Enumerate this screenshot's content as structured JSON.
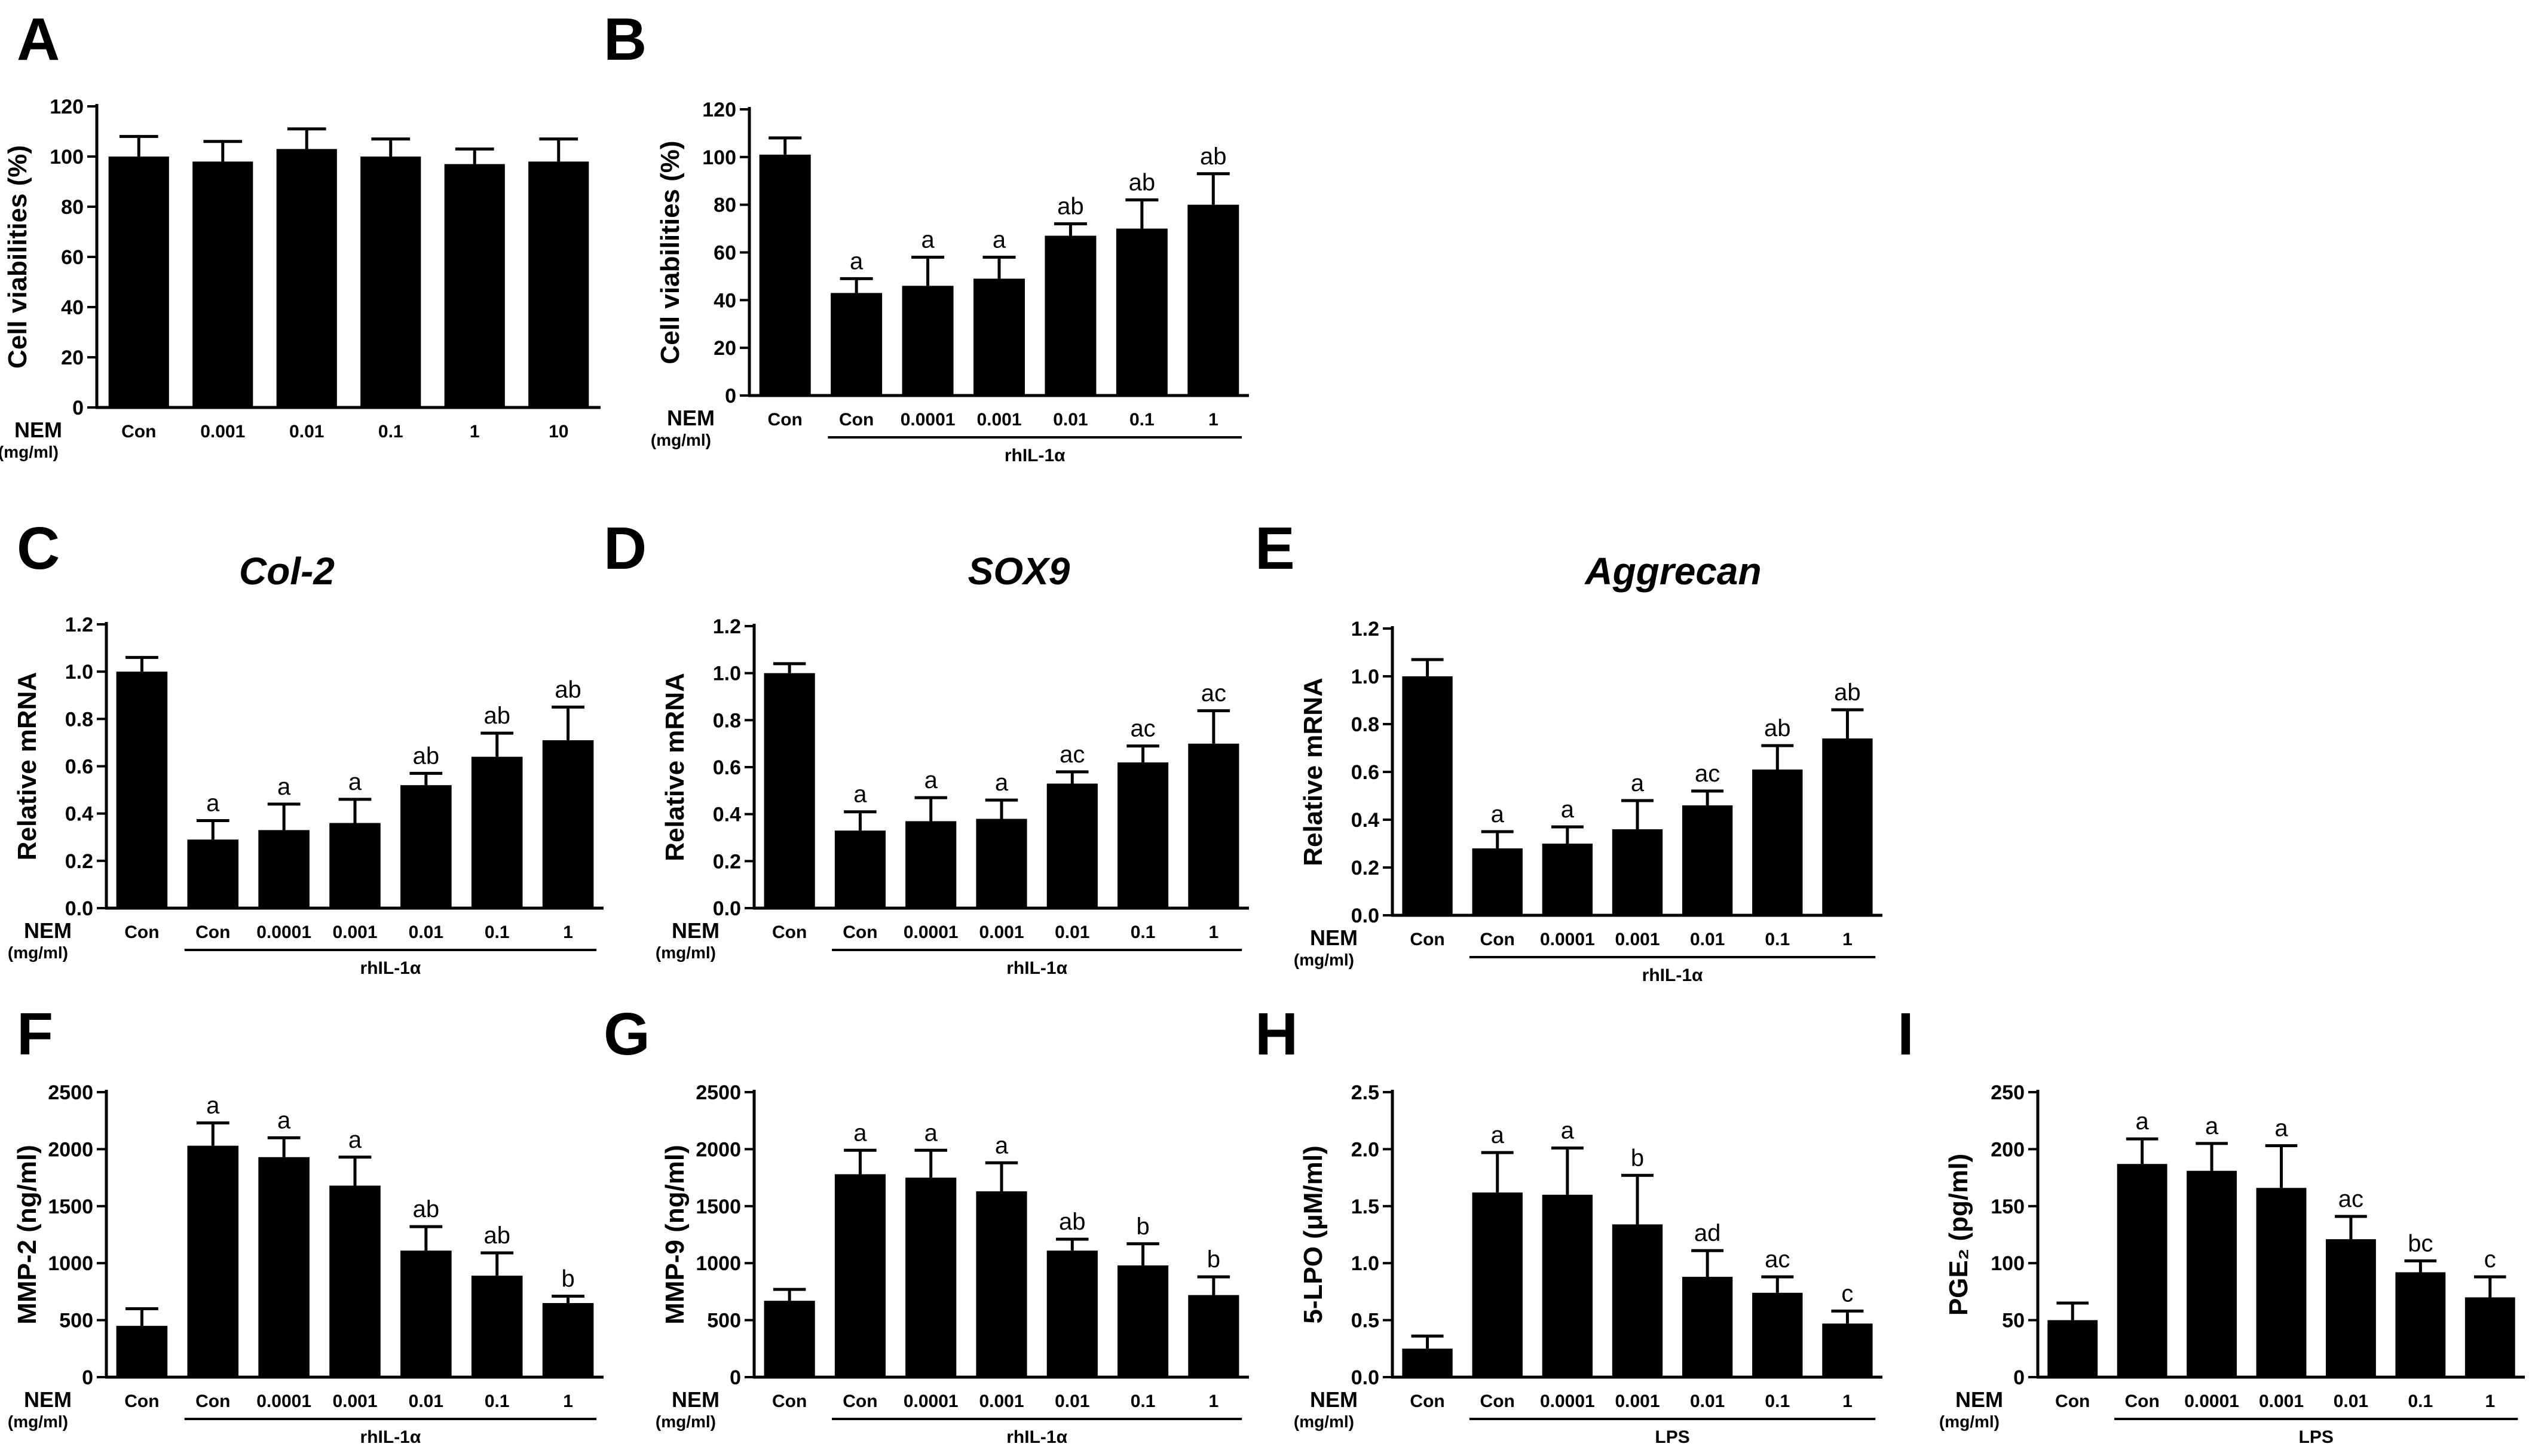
{
  "colors": {
    "bar": "#000000",
    "axis": "#000000",
    "background": "#ffffff"
  },
  "x_axis_label": {
    "main": "NEM",
    "unit": "(mg/ml)"
  },
  "chart_data": [
    {
      "id": "A",
      "panel_label": "A",
      "type": "bar",
      "title": "",
      "ylabel": "Cell viabilities (%)",
      "ylim": [
        0,
        120
      ],
      "yticks": [
        "0",
        "20",
        "40",
        "60",
        "80",
        "100",
        "120"
      ],
      "categories": [
        "Con",
        "0.001",
        "0.01",
        "0.1",
        "1",
        "10"
      ],
      "values": [
        100,
        98,
        103,
        100,
        97,
        98
      ],
      "errors": [
        8,
        8,
        8,
        7,
        6,
        9
      ],
      "significance": [
        "",
        "",
        "",
        "",
        "",
        ""
      ],
      "treatment_group": null
    },
    {
      "id": "B",
      "panel_label": "B",
      "type": "bar",
      "title": "",
      "ylabel": "Cell viabilities (%)",
      "ylim": [
        0,
        120
      ],
      "yticks": [
        "0",
        "20",
        "40",
        "60",
        "80",
        "100",
        "120"
      ],
      "categories": [
        "Con",
        "Con",
        "0.0001",
        "0.001",
        "0.01",
        "0.1",
        "1"
      ],
      "values": [
        101,
        43,
        46,
        49,
        67,
        70,
        80
      ],
      "errors": [
        7,
        6,
        12,
        9,
        5,
        12,
        13
      ],
      "significance": [
        "",
        "a",
        "a",
        "a",
        "ab",
        "ab",
        "ab"
      ],
      "treatment_group": {
        "label": "rhIL-1α",
        "start": 1,
        "end": 6
      }
    },
    {
      "id": "C",
      "panel_label": "C",
      "type": "bar",
      "title": "Col-2",
      "ylabel": "Relative mRNA",
      "ylim": [
        0,
        1.2
      ],
      "yticks": [
        "0.0",
        "0.2",
        "0.4",
        "0.6",
        "0.8",
        "1.0",
        "1.2"
      ],
      "categories": [
        "Con",
        "Con",
        "0.0001",
        "0.001",
        "0.01",
        "0.1",
        "1"
      ],
      "values": [
        1.0,
        0.29,
        0.33,
        0.36,
        0.52,
        0.64,
        0.71
      ],
      "errors": [
        0.06,
        0.08,
        0.11,
        0.1,
        0.05,
        0.1,
        0.14
      ],
      "significance": [
        "",
        "a",
        "a",
        "a",
        "ab",
        "ab",
        "ab"
      ],
      "treatment_group": {
        "label": "rhIL-1α",
        "start": 1,
        "end": 6
      }
    },
    {
      "id": "D",
      "panel_label": "D",
      "type": "bar",
      "title": "SOX9",
      "ylabel": "Relative mRNA",
      "ylim": [
        0,
        1.2
      ],
      "yticks": [
        "0.0",
        "0.2",
        "0.4",
        "0.6",
        "0.8",
        "1.0",
        "1.2"
      ],
      "categories": [
        "Con",
        "Con",
        "0.0001",
        "0.001",
        "0.01",
        "0.1",
        "1"
      ],
      "values": [
        1.0,
        0.33,
        0.37,
        0.38,
        0.53,
        0.62,
        0.7
      ],
      "errors": [
        0.04,
        0.08,
        0.1,
        0.08,
        0.05,
        0.07,
        0.14
      ],
      "significance": [
        "",
        "a",
        "a",
        "a",
        "ac",
        "ac",
        "ac"
      ],
      "treatment_group": {
        "label": "rhIL-1α",
        "start": 1,
        "end": 6
      }
    },
    {
      "id": "E",
      "panel_label": "E",
      "type": "bar",
      "title": "Aggrecan",
      "ylabel": "Relative mRNA",
      "ylim": [
        0,
        1.2
      ],
      "yticks": [
        "0.0",
        "0.2",
        "0.4",
        "0.6",
        "0.8",
        "1.0",
        "1.2"
      ],
      "categories": [
        "Con",
        "Con",
        "0.0001",
        "0.001",
        "0.01",
        "0.1",
        "1"
      ],
      "values": [
        1.0,
        0.28,
        0.3,
        0.36,
        0.46,
        0.61,
        0.74
      ],
      "errors": [
        0.07,
        0.07,
        0.07,
        0.12,
        0.06,
        0.1,
        0.12
      ],
      "significance": [
        "",
        "a",
        "a",
        "a",
        "ac",
        "ab",
        "ab"
      ],
      "treatment_group": {
        "label": "rhIL-1α",
        "start": 1,
        "end": 6
      }
    },
    {
      "id": "F",
      "panel_label": "F",
      "type": "bar",
      "title": "",
      "ylabel": "MMP-2 (ng/ml)",
      "ylim": [
        0,
        2500
      ],
      "yticks": [
        "0",
        "500",
        "1000",
        "1500",
        "2000",
        "2500"
      ],
      "categories": [
        "Con",
        "Con",
        "0.0001",
        "0.001",
        "0.01",
        "0.1",
        "1"
      ],
      "values": [
        450,
        2030,
        1930,
        1680,
        1110,
        890,
        650
      ],
      "errors": [
        150,
        200,
        170,
        250,
        210,
        200,
        60
      ],
      "significance": [
        "",
        "a",
        "a",
        "a",
        "ab",
        "ab",
        "b"
      ],
      "treatment_group": {
        "label": "rhIL-1α",
        "start": 1,
        "end": 6
      }
    },
    {
      "id": "G",
      "panel_label": "G",
      "type": "bar",
      "title": "",
      "ylabel": "MMP-9 (ng/ml)",
      "ylim": [
        0,
        2500
      ],
      "yticks": [
        "0",
        "500",
        "1000",
        "1500",
        "2000",
        "2500"
      ],
      "categories": [
        "Con",
        "Con",
        "0.0001",
        "0.001",
        "0.01",
        "0.1",
        "1"
      ],
      "values": [
        670,
        1780,
        1750,
        1630,
        1110,
        980,
        720
      ],
      "errors": [
        100,
        210,
        240,
        250,
        100,
        190,
        160
      ],
      "significance": [
        "",
        "a",
        "a",
        "a",
        "ab",
        "b",
        "b"
      ],
      "treatment_group": {
        "label": "rhIL-1α",
        "start": 1,
        "end": 6
      }
    },
    {
      "id": "H",
      "panel_label": "H",
      "type": "bar",
      "title": "",
      "ylabel": "5-LPO (μM/ml)",
      "ylim": [
        0,
        2.5
      ],
      "yticks": [
        "0.0",
        "0.5",
        "1.0",
        "1.5",
        "2.0",
        "2.5"
      ],
      "categories": [
        "Con",
        "Con",
        "0.0001",
        "0.001",
        "0.01",
        "0.1",
        "1"
      ],
      "values": [
        0.25,
        1.62,
        1.6,
        1.34,
        0.88,
        0.74,
        0.47
      ],
      "errors": [
        0.11,
        0.35,
        0.41,
        0.43,
        0.23,
        0.14,
        0.11
      ],
      "significance": [
        "",
        "a",
        "a",
        "b",
        "ad",
        "ac",
        "c"
      ],
      "treatment_group": {
        "label": "LPS",
        "start": 1,
        "end": 6
      }
    },
    {
      "id": "I",
      "panel_label": "I",
      "type": "bar",
      "title": "",
      "ylabel": "PGE₂ (pg/ml)",
      "ylim": [
        0,
        250
      ],
      "yticks": [
        "0",
        "50",
        "100",
        "150",
        "200",
        "250"
      ],
      "categories": [
        "Con",
        "Con",
        "0.0001",
        "0.001",
        "0.01",
        "0.1",
        "1"
      ],
      "values": [
        50,
        187,
        181,
        166,
        121,
        92,
        70
      ],
      "errors": [
        15,
        22,
        24,
        37,
        20,
        10,
        18
      ],
      "significance": [
        "",
        "a",
        "a",
        "a",
        "ac",
        "bc",
        "c"
      ],
      "treatment_group": {
        "label": "LPS",
        "start": 1,
        "end": 6
      }
    }
  ]
}
